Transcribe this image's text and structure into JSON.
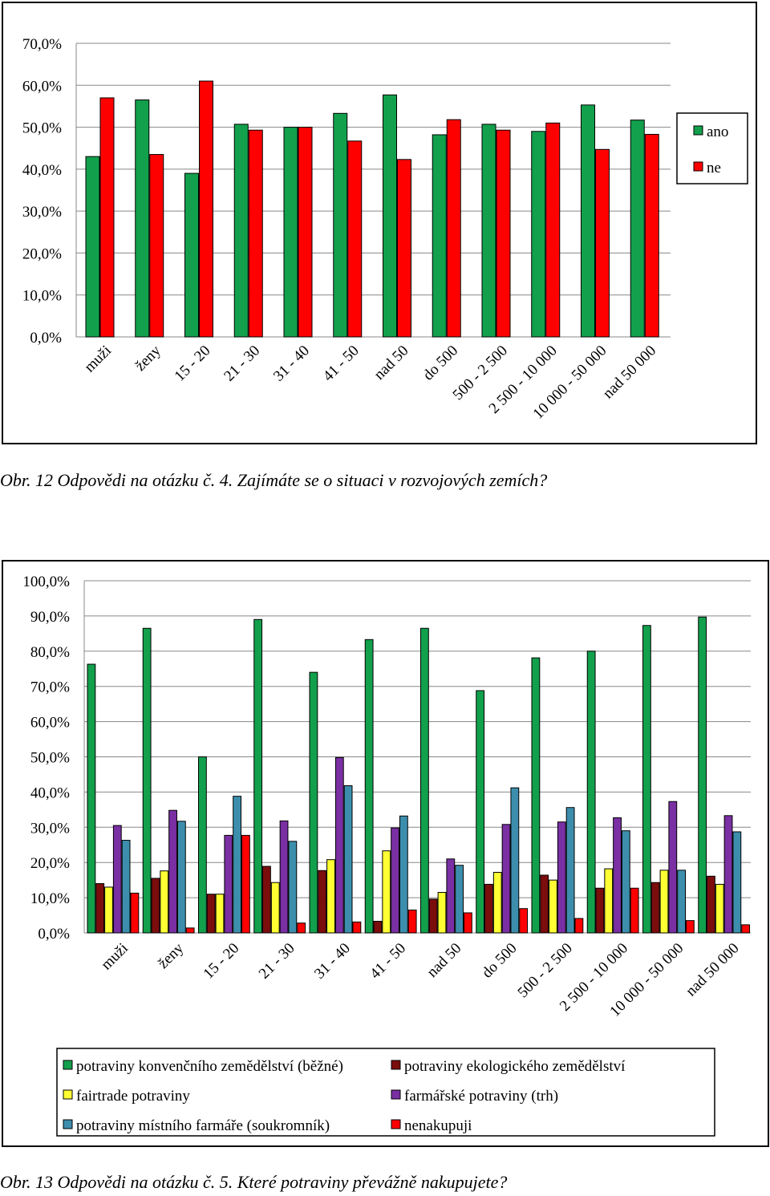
{
  "captions": {
    "fig12": "Obr. 12 Odpovědi na otázku č. 4. Zajímáte se o situaci v rozvojových zemích?",
    "fig13": "Obr. 13 Odpovědi na otázku č. 5. Které potraviny převážně nakupujete?"
  },
  "chart_data": [
    {
      "type": "bar",
      "categories": [
        "muži",
        "ženy",
        "15 - 20",
        "21 - 30",
        "31 - 40",
        "41 - 50",
        "nad 50",
        "do 500",
        "500 - 2 500",
        "2 500 - 10 000",
        "10 000 - 50 000",
        "nad 50 000"
      ],
      "ylim": [
        0,
        70
      ],
      "yticks": [
        "0,0%",
        "10,0%",
        "20,0%",
        "30,0%",
        "40,0%",
        "50,0%",
        "60,0%",
        "70,0%"
      ],
      "grid": true,
      "legend_position": "right",
      "series": [
        {
          "name": "ano",
          "color": "#12a04c",
          "values": [
            43.0,
            56.5,
            39.0,
            50.7,
            50.0,
            53.3,
            57.7,
            48.2,
            50.7,
            49.0,
            55.3,
            51.7
          ]
        },
        {
          "name": "ne",
          "color": "#ff0000",
          "values": [
            57.0,
            43.5,
            61.0,
            49.3,
            50.0,
            46.7,
            42.3,
            51.8,
            49.3,
            51.0,
            44.7,
            48.3
          ]
        }
      ]
    },
    {
      "type": "bar",
      "categories": [
        "muži",
        "ženy",
        "15 - 20",
        "21 - 30",
        "31 - 40",
        "41 - 50",
        "nad 50",
        "do 500",
        "500 - 2 500",
        "2 500 - 10 000",
        "10 000 - 50 000",
        "nad 50 000"
      ],
      "ylim": [
        0,
        100
      ],
      "yticks": [
        "0,0%",
        "10,0%",
        "20,0%",
        "30,0%",
        "40,0%",
        "50,0%",
        "60,0%",
        "70,0%",
        "80,0%",
        "90,0%",
        "100,0%"
      ],
      "grid": true,
      "legend_position": "bottom",
      "series": [
        {
          "name": "potraviny konvenčního zemědělství (běžné)",
          "color": "#12a04c",
          "values": [
            76.3,
            86.5,
            50.0,
            89.0,
            74.0,
            83.3,
            86.5,
            68.8,
            78.1,
            80.0,
            87.3,
            89.7
          ]
        },
        {
          "name": "potraviny ekologického zemědělství",
          "color": "#7b0d0d",
          "values": [
            14.0,
            15.5,
            11.0,
            18.9,
            17.7,
            3.3,
            9.6,
            13.8,
            16.4,
            12.7,
            14.3,
            16.1
          ]
        },
        {
          "name": "fairtrade potraviny",
          "color": "#ffff33",
          "values": [
            13.0,
            17.6,
            11.0,
            14.3,
            20.8,
            23.3,
            11.5,
            17.2,
            15.0,
            18.2,
            17.8,
            13.8
          ]
        },
        {
          "name": "farmářské potraviny (trh)",
          "color": "#7a2fa3",
          "values": [
            30.5,
            34.8,
            27.7,
            31.8,
            49.8,
            29.8,
            21.0,
            30.8,
            31.5,
            32.7,
            37.3,
            33.3
          ]
        },
        {
          "name": "potraviny místního farmáře (soukromník)",
          "color": "#3d8ead",
          "values": [
            26.3,
            31.7,
            38.8,
            26.0,
            41.8,
            33.2,
            19.2,
            41.2,
            35.6,
            29.0,
            17.8,
            28.7
          ]
        },
        {
          "name": "nenakupuji",
          "color": "#ff0000",
          "values": [
            11.3,
            1.4,
            27.7,
            2.8,
            3.1,
            6.5,
            5.7,
            6.9,
            4.1,
            12.7,
            3.5,
            2.3
          ]
        }
      ]
    }
  ]
}
